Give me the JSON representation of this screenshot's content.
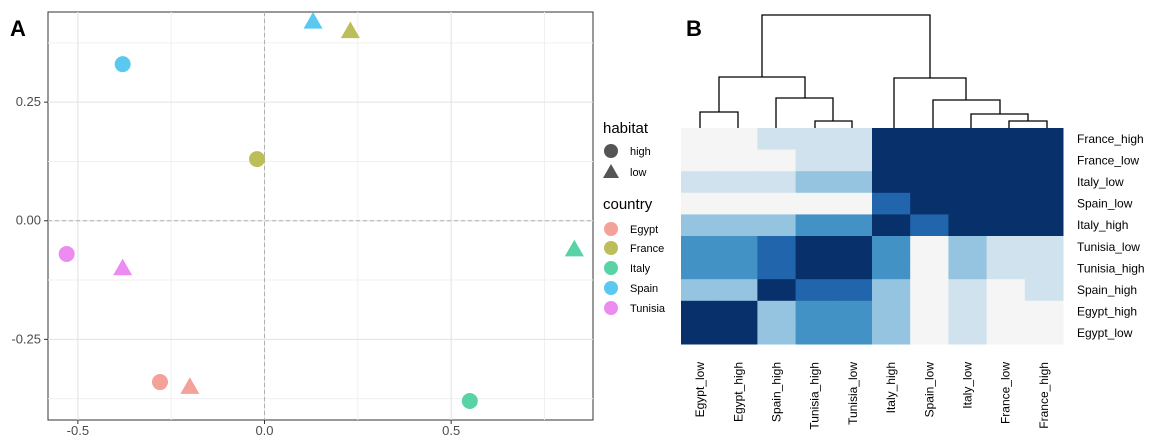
{
  "chart_data": [
    {
      "panel": "A",
      "type": "scatter",
      "xlim": [
        -0.58,
        0.88
      ],
      "ylim": [
        -0.42,
        0.44
      ],
      "x_ticks": [
        -0.5,
        0.0,
        0.5
      ],
      "y_ticks": [
        0.25,
        0.0,
        -0.25
      ],
      "x_tick_labels": [
        "-0.5",
        "0.0",
        "0.5"
      ],
      "y_tick_labels": [
        "0.25",
        "0.00",
        "-0.25"
      ],
      "grid": true,
      "reference_lines": [
        0,
        0
      ],
      "legend_position": "right",
      "legends": [
        {
          "title": "habitat",
          "entries": [
            {
              "label": "high",
              "shape": "circle"
            },
            {
              "label": "low",
              "shape": "triangle"
            }
          ]
        },
        {
          "title": "country",
          "entries": [
            {
              "label": "Egypt",
              "color": "#f4a19a"
            },
            {
              "label": "France",
              "color": "#bdbd5a"
            },
            {
              "label": "Italy",
              "color": "#58d3a6"
            },
            {
              "label": "Spain",
              "color": "#5bc8f0"
            },
            {
              "label": "Tunisia",
              "color": "#ec8cf0"
            }
          ]
        }
      ],
      "points": [
        {
          "country": "Spain",
          "habitat": "low",
          "x": 0.13,
          "y": 0.42
        },
        {
          "country": "France",
          "habitat": "low",
          "x": 0.23,
          "y": 0.4
        },
        {
          "country": "Spain",
          "habitat": "high",
          "x": -0.38,
          "y": 0.33
        },
        {
          "country": "France",
          "habitat": "high",
          "x": -0.02,
          "y": 0.13
        },
        {
          "country": "Italy",
          "habitat": "low",
          "x": 0.83,
          "y": -0.06
        },
        {
          "country": "Tunisia",
          "habitat": "high",
          "x": -0.53,
          "y": -0.07
        },
        {
          "country": "Tunisia",
          "habitat": "low",
          "x": -0.38,
          "y": -0.1
        },
        {
          "country": "Egypt",
          "habitat": "high",
          "x": -0.28,
          "y": -0.34
        },
        {
          "country": "Egypt",
          "habitat": "low",
          "x": -0.2,
          "y": -0.35
        },
        {
          "country": "Italy",
          "habitat": "high",
          "x": 0.55,
          "y": -0.38
        }
      ]
    },
    {
      "panel": "B",
      "type": "heatmap",
      "columns": [
        "Egypt_low",
        "Egypt_high",
        "Spain_high",
        "Tunisia_high",
        "Tunisia_low",
        "Italy_high",
        "Spain_low",
        "Italy_low",
        "France_low",
        "France_high"
      ],
      "rows": [
        "France_high",
        "France_low",
        "Italy_low",
        "Spain_low",
        "Italy_high",
        "Tunisia_low",
        "Tunisia_high",
        "Spain_high",
        "Egypt_high",
        "Egypt_low"
      ],
      "colors": [
        "#f5f5f5",
        "#d1e2ef",
        "#94c4df",
        "#4292c6",
        "#2166ac",
        "#08306b"
      ],
      "levels": [
        [
          0,
          0,
          1,
          1,
          1,
          5,
          5,
          5,
          5,
          5
        ],
        [
          0,
          0,
          0,
          1,
          1,
          5,
          5,
          5,
          5,
          5
        ],
        [
          1,
          1,
          1,
          2,
          2,
          5,
          5,
          5,
          5,
          5
        ],
        [
          0,
          0,
          0,
          0,
          0,
          4,
          5,
          5,
          5,
          5
        ],
        [
          2,
          2,
          2,
          3,
          3,
          5,
          4,
          5,
          5,
          5
        ],
        [
          3,
          3,
          4,
          5,
          5,
          3,
          0,
          2,
          1,
          1
        ],
        [
          3,
          3,
          4,
          5,
          5,
          3,
          0,
          2,
          1,
          1
        ],
        [
          2,
          2,
          5,
          4,
          4,
          2,
          0,
          1,
          0,
          1
        ],
        [
          5,
          5,
          2,
          3,
          3,
          2,
          0,
          1,
          0,
          0
        ],
        [
          5,
          5,
          2,
          3,
          3,
          2,
          0,
          1,
          0,
          0
        ]
      ],
      "dendrogram": "columns"
    }
  ],
  "panel_labels": {
    "a": "A",
    "b": "B"
  },
  "legend": {
    "habitat_title": "habitat",
    "habitat_high": "high",
    "habitat_low": "low",
    "country_title": "country",
    "countries": [
      "Egypt",
      "France",
      "Italy",
      "Spain",
      "Tunisia"
    ]
  }
}
